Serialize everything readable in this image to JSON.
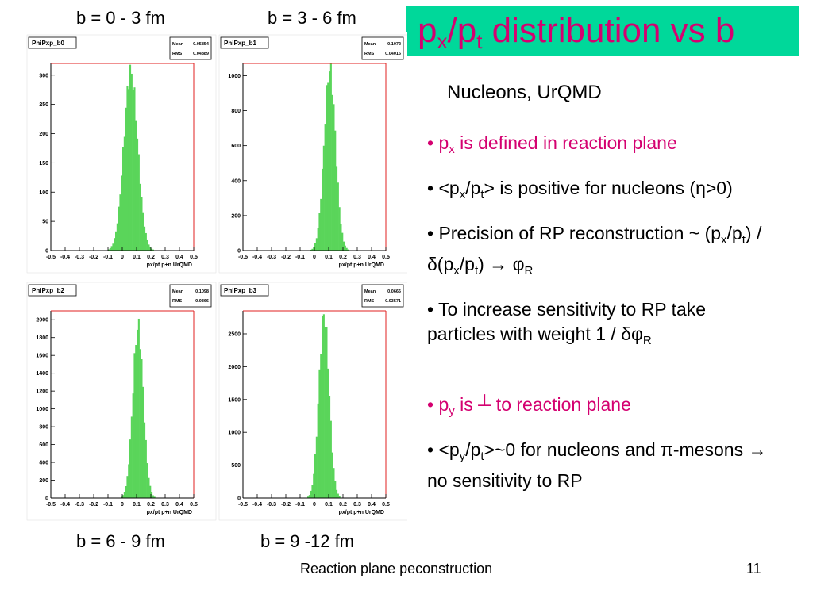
{
  "slide": {
    "title_main": "p",
    "title_sub1": "x",
    "title_mid": "/p",
    "title_sub2": "t",
    "title_rest": " distribution vs b",
    "subtitle": "Nucleons, UrQMD",
    "footer": "Reaction plane peconstruction",
    "page_number": "11",
    "colors": {
      "title_bar": "#00d89a",
      "title_text": "#d40070",
      "histogram_fill": "#5ad55a",
      "frame_red": "#e02020"
    }
  },
  "b_labels": {
    "top_left": "b = 0 - 3 fm",
    "top_right": "b = 3 - 6 fm",
    "bottom_left": "b = 6 - 9 fm",
    "bottom_right": "b = 9 -12 fm"
  },
  "bullets": [
    {
      "color": "pink",
      "parts": [
        "• p",
        "x",
        " is defined in reaction plane"
      ]
    },
    {
      "color": "black",
      "parts": [
        "•  <p",
        "x",
        "/p",
        "t",
        "> is positive for nucleons (η>0)"
      ]
    },
    {
      "color": "black",
      "parts": [
        "• Precision of RP reconstruction ~ (p",
        "x",
        "/p",
        "t",
        ") / δ(p",
        "x",
        "/p",
        "t",
        ") → φ",
        "R"
      ]
    },
    {
      "color": "black",
      "parts": [
        "• To increase sensitivity to RP take particles with weight  1 / δφ",
        "R"
      ]
    },
    {
      "color": "pink",
      "parts": [
        "• p",
        "y",
        " is  ┴  to reaction plane"
      ]
    },
    {
      "color": "black",
      "parts": [
        "• <p",
        "y",
        "/p",
        "t",
        ">~0 for nucleons and π-mesons → no sensitivity to RP"
      ]
    }
  ],
  "chart_data": [
    {
      "type": "bar",
      "name": "PhiPxp_b0",
      "stats": {
        "mean_label": "Mean",
        "mean": "0.05854",
        "rms_label": "RMS",
        "rms": "0.04889"
      },
      "xlabel": "px/pt  p+n UrQMD",
      "xlim": [
        -0.5,
        0.5
      ],
      "ylim": [
        0,
        320
      ],
      "yticks": [
        "0",
        "50",
        "100",
        "150",
        "200",
        "250",
        "300"
      ],
      "ytick_values": [
        0,
        50,
        100,
        150,
        200,
        250,
        300
      ],
      "xticks": [
        "-0.5",
        "-0.4",
        "-0.3",
        "-0.2",
        "-0.1",
        "0",
        "0.1",
        "0.2",
        "0.3",
        "0.4",
        "0.5"
      ],
      "mean": 0.0585,
      "rms": 0.0489,
      "peak": 305
    },
    {
      "type": "bar",
      "name": "PhiPxp_b1",
      "stats": {
        "mean_label": "Mean",
        "mean": "0.1072",
        "rms_label": "RMS",
        "rms": "0.04016"
      },
      "xlabel": "px/pt  p+n UrQMD",
      "xlim": [
        -0.5,
        0.5
      ],
      "ylim": [
        0,
        1070
      ],
      "yticks": [
        "0",
        "200",
        "400",
        "600",
        "800",
        "1000"
      ],
      "ytick_values": [
        0,
        200,
        400,
        600,
        800,
        1000
      ],
      "xticks": [
        "-0.5",
        "-0.4",
        "-0.3",
        "-0.2",
        "-0.1",
        "0",
        "0.1",
        "0.2",
        "0.3",
        "0.4",
        "0.5"
      ],
      "mean": 0.1072,
      "rms": 0.0402,
      "peak": 1040
    },
    {
      "type": "bar",
      "name": "PhiPxp_b2",
      "stats": {
        "mean_label": "Mean",
        "mean": "0.1098",
        "rms_label": "RMS",
        "rms": "0.0366"
      },
      "xlabel": "px/pt  p+n UrQMD",
      "xlim": [
        -0.5,
        0.5
      ],
      "ylim": [
        0,
        2100
      ],
      "yticks": [
        "0",
        "200",
        "400",
        "600",
        "800",
        "1000",
        "1200",
        "1400",
        "1600",
        "1800",
        "2000"
      ],
      "ytick_values": [
        0,
        200,
        400,
        600,
        800,
        1000,
        1200,
        1400,
        1600,
        1800,
        2000
      ],
      "xticks": [
        "-0.5",
        "-0.4",
        "-0.3",
        "-0.2",
        "-0.1",
        "0",
        "0.1",
        "0.2",
        "0.3",
        "0.4",
        "0.5"
      ],
      "mean": 0.1098,
      "rms": 0.0366,
      "peak": 1930
    },
    {
      "type": "bar",
      "name": "PhiPxp_b3",
      "stats": {
        "mean_label": "Mean",
        "mean": "0.0666",
        "rms_label": "RMS",
        "rms": "0.03571"
      },
      "xlabel": "px/pt  p+n UrQMD",
      "xlim": [
        -0.5,
        0.5
      ],
      "ylim": [
        0,
        2850
      ],
      "yticks": [
        "0",
        "500",
        "1000",
        "1500",
        "2000",
        "2500"
      ],
      "ytick_values": [
        0,
        500,
        1000,
        1500,
        2000,
        2500
      ],
      "xticks": [
        "-0.5",
        "-0.4",
        "-0.3",
        "-0.2",
        "-0.1",
        "0",
        "0.1",
        "0.2",
        "0.3",
        "0.4",
        "0.5"
      ],
      "mean": 0.0666,
      "rms": 0.0357,
      "peak": 2800
    }
  ]
}
